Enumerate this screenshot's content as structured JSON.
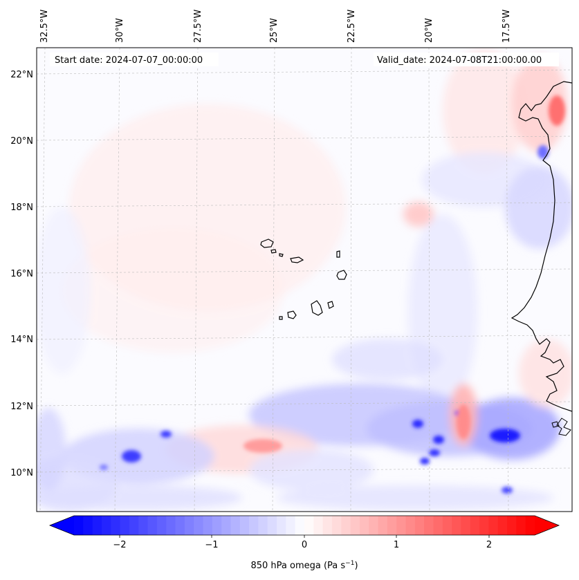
{
  "header": {
    "start_label": "Start date: 2024-07-07_00:00:00",
    "valid_label": "Valid_date: 2024-07-08T21:00:00.00"
  },
  "map": {
    "lon_labels": [
      "32.5°W",
      "30°W",
      "27.5°W",
      "25°W",
      "22.5°W",
      "20°W",
      "17.5°W"
    ],
    "lat_labels": [
      "22°N",
      "20°N",
      "18°N",
      "16°N",
      "14°N",
      "12°N",
      "10°N"
    ],
    "colors": {
      "neg_max": "#0000ff",
      "neutral": "#ffffff",
      "pos_max": "#ff0000",
      "coastline": "#000000",
      "gridline": "#bbbbbb"
    }
  },
  "colorbar": {
    "ticks": [
      "−2",
      "−1",
      "0",
      "1",
      "2"
    ],
    "label": "850 hPa omega (Pa s",
    "label_sup": "−1",
    "label_end": ")"
  }
}
